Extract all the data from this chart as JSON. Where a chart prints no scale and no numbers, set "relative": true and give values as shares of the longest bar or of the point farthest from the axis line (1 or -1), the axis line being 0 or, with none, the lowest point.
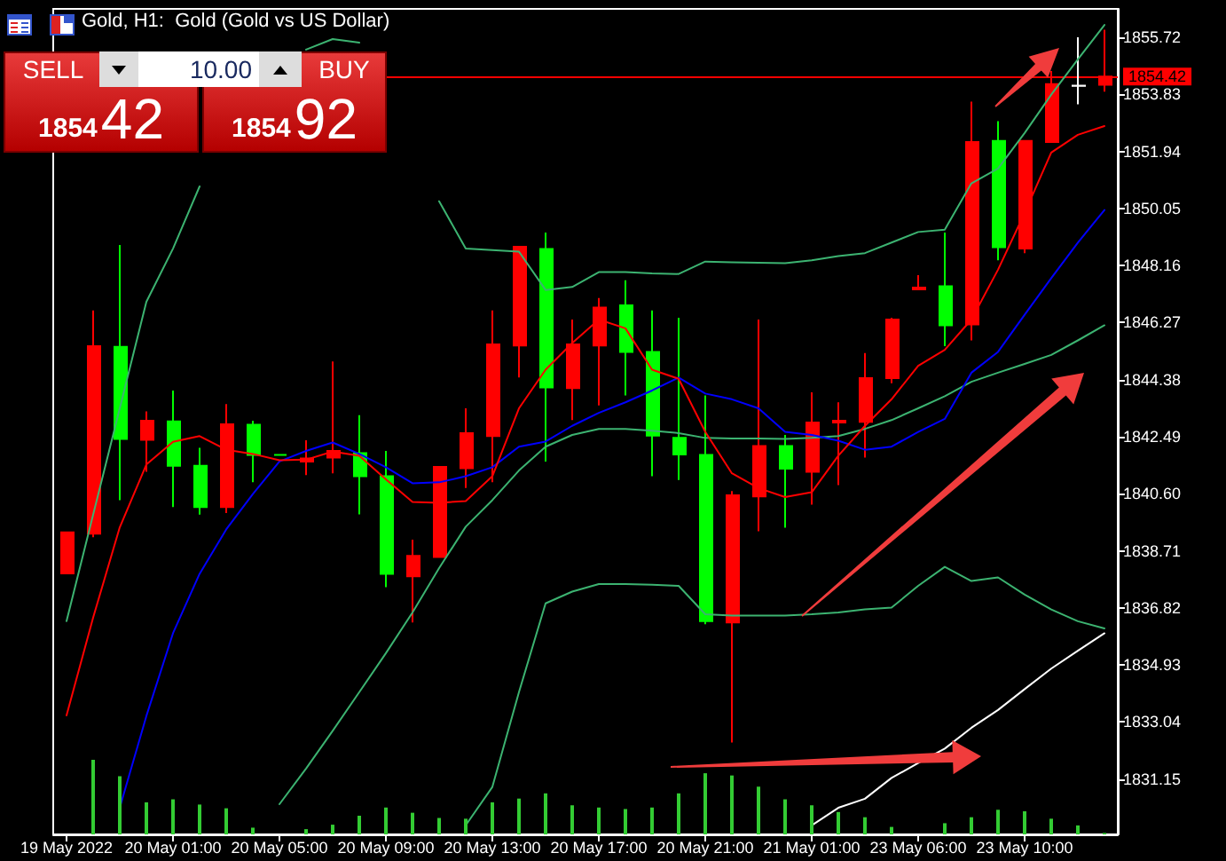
{
  "chart_data": [
    {
      "type": "candlestick",
      "title": "Gold, H1:  Gold (Gold vs US Dollar)",
      "annotations": [
        "SELL",
        "10.00",
        "BUY",
        "1854",
        "42",
        "1854",
        "92"
      ],
      "categories": [
        "19 May 2022",
        null,
        null,
        null,
        "20 May 01:00",
        null,
        null,
        null,
        "20 May 05:00",
        null,
        null,
        null,
        "20 May 09:00",
        null,
        null,
        null,
        "20 May 13:00",
        null,
        null,
        null,
        "20 May 17:00",
        null,
        null,
        null,
        "20 May 21:00",
        null,
        null,
        null,
        "21 May 01:00",
        null,
        null,
        null,
        "23 May 06:00",
        null,
        null,
        null,
        "23 May 10:00",
        null,
        null,
        null
      ],
      "ohlc": [
        [
          1837.96,
          1839.32,
          1837.96,
          1839.32
        ],
        [
          1839.28,
          1846.67,
          1839.16,
          1845.49
        ],
        [
          1845.47,
          1848.84,
          1840.39,
          1842.42
        ],
        [
          1842.39,
          1843.33,
          1841.33,
          1843.02
        ],
        [
          1843.0,
          1844.02,
          1840.16,
          1841.53
        ],
        [
          1841.53,
          1842.12,
          1839.91,
          1840.16
        ],
        [
          1840.16,
          1843.57,
          1839.96,
          1842.9
        ],
        [
          1842.89,
          1843.02,
          1840.98,
          1841.89
        ],
        [
          1841.89,
          1841.92,
          1841.86,
          1841.89
        ],
        [
          1841.67,
          1842.37,
          1841.22,
          1841.77
        ],
        [
          1841.8,
          1844.98,
          1841.28,
          1842.02
        ],
        [
          1841.95,
          1843.2,
          1839.92,
          1841.18
        ],
        [
          1841.18,
          1842.02,
          1837.51,
          1837.95
        ],
        [
          1837.87,
          1839.08,
          1836.34,
          1838.54
        ],
        [
          1838.51,
          1841.49,
          1838.51,
          1841.49
        ],
        [
          1841.45,
          1843.43,
          1840.79,
          1842.61
        ],
        [
          1842.51,
          1846.67,
          1840.98,
          1845.55
        ],
        [
          1845.51,
          1848.78,
          1844.45,
          1848.78
        ],
        [
          1848.71,
          1849.25,
          1841.67,
          1844.12
        ],
        [
          1844.1,
          1846.37,
          1843.04,
          1845.55
        ],
        [
          1845.51,
          1847.08,
          1843.53,
          1846.77
        ],
        [
          1846.84,
          1847.67,
          1843.86,
          1845.3
        ],
        [
          1845.3,
          1846.67,
          1841.18,
          1842.53
        ],
        [
          1842.45,
          1846.43,
          1841.06,
          1841.9
        ],
        [
          1841.89,
          1843.86,
          1836.28,
          1836.38
        ],
        [
          1836.34,
          1840.69,
          1832.36,
          1840.55
        ],
        [
          1840.51,
          1846.37,
          1839.36,
          1842.18
        ],
        [
          1842.18,
          1842.55,
          1839.48,
          1841.43
        ],
        [
          1841.33,
          1843.96,
          1840.24,
          1842.96
        ],
        [
          1842.96,
          1843.63,
          1840.89,
          1843.02
        ],
        [
          1842.98,
          1845.26,
          1841.8,
          1844.43
        ],
        [
          1844.43,
          1846.43,
          1844.26,
          1846.37
        ],
        [
          1847.37,
          1847.84,
          1847.37,
          1847.43
        ],
        [
          1847.47,
          1849.25,
          1845.49,
          1846.18
        ],
        [
          1846.21,
          1853.59,
          1845.68,
          1852.25
        ],
        [
          1852.29,
          1852.94,
          1848.33,
          1848.77
        ],
        [
          1848.72,
          1852.29,
          1848.57,
          1852.29
        ],
        [
          1852.25,
          1854.6,
          1852.25,
          1854.17
        ],
        [
          1854.11,
          1855.72,
          1853.5,
          1854.12
        ],
        [
          1854.15,
          1855.97,
          1853.92,
          1854.42
        ]
      ],
      "colors": [
        "#ff0000",
        "#ff0000",
        "#00ff00",
        "#ff0000",
        "#00ff00",
        "#00ff00",
        "#ff0000",
        "#00ff00",
        "#00ff00",
        "#ff0000",
        "#ff0000",
        "#00ff00",
        "#00ff00",
        "#ff0000",
        "#ff0000",
        "#ff0000",
        "#ff0000",
        "#ff0000",
        "#00ff00",
        "#ff0000",
        "#ff0000",
        "#00ff00",
        "#00ff00",
        "#00ff00",
        "#00ff00",
        "#ff0000",
        "#ff0000",
        "#00ff00",
        "#ff0000",
        "#ff0000",
        "#ff0000",
        "#ff0000",
        "#ff0000",
        "#00ff00",
        "#ff0000",
        "#00ff00",
        "#ff0000",
        "#ff0000",
        "#ffffff",
        "#ff0000"
      ],
      "series": [
        {
          "type": "line",
          "color": "#3cb371",
          "values": [
            1836.38,
            1839.91,
            1843.43,
            1846.96,
            1848.72,
            1850.78,
            null,
            null,
            null,
            1855.31,
            1855.66,
            1855.54,
            null,
            null,
            1850.29,
            1848.72,
            1848.67,
            1848.62,
            1847.35,
            1847.45,
            1847.94,
            1847.94,
            1847.9,
            1847.88,
            1848.29,
            1848.27,
            1848.25,
            1848.24,
            1848.33,
            1848.47,
            1848.57,
            1848.92,
            1849.27,
            1849.35,
            1850.88,
            1851.37,
            1852.55,
            1853.82,
            1854.99,
            1856.13
          ]
        },
        {
          "type": "line",
          "color": "#3cb371",
          "values": [
            null,
            null,
            null,
            null,
            null,
            null,
            null,
            null,
            1830.32,
            1831.5,
            1832.75,
            1834.03,
            1835.32,
            1836.67,
            1838.14,
            1839.51,
            1840.39,
            1841.37,
            1842.16,
            1842.55,
            1842.75,
            1842.75,
            1842.69,
            1842.61,
            1842.45,
            1842.43,
            1842.43,
            1842.42,
            1842.45,
            1842.51,
            1842.75,
            1843.04,
            1843.43,
            1843.83,
            1844.31,
            1844.61,
            1844.9,
            1845.2,
            1845.68,
            1846.18
          ]
        },
        {
          "type": "line",
          "color": "#3cb371",
          "values": [
            null,
            null,
            null,
            null,
            null,
            null,
            null,
            null,
            null,
            null,
            null,
            null,
            null,
            null,
            null,
            1829.62,
            1830.89,
            1834.03,
            1836.97,
            1837.36,
            1837.61,
            1837.61,
            1837.59,
            1837.55,
            1836.61,
            1836.57,
            1836.57,
            1836.57,
            1836.61,
            1836.67,
            1836.77,
            1836.83,
            1837.55,
            1838.18,
            1837.71,
            1837.83,
            1837.26,
            1836.77,
            1836.38,
            1836.14
          ]
        },
        {
          "type": "line",
          "color": "#ffffff",
          "values": [
            null,
            null,
            null,
            null,
            null,
            null,
            null,
            null,
            null,
            null,
            null,
            null,
            null,
            null,
            null,
            null,
            null,
            null,
            null,
            null,
            null,
            null,
            null,
            null,
            null,
            null,
            null,
            null,
            1829.62,
            1830.2,
            1830.5,
            1831.19,
            1831.68,
            1832.16,
            1832.85,
            1833.44,
            1834.13,
            1834.81,
            1835.4,
            1835.98
          ]
        },
        {
          "type": "line",
          "color": "#0000ff",
          "values": [
            null,
            null,
            1830.2,
            1833.24,
            1835.98,
            1837.95,
            1839.42,
            1840.59,
            1841.67,
            1842.02,
            1842.3,
            1841.92,
            1841.48,
            1840.95,
            1840.98,
            1841.18,
            1841.48,
            1842.16,
            1842.33,
            1842.85,
            1843.28,
            1843.63,
            1844.02,
            1844.45,
            1843.92,
            1843.73,
            1843.43,
            1842.65,
            1842.55,
            1842.36,
            1842.06,
            1842.16,
            1842.65,
            1843.08,
            1844.61,
            1845.3,
            1846.53,
            1847.74,
            1848.92,
            1850.0
          ]
        },
        {
          "type": "line",
          "color": "#ff0000",
          "values": [
            1833.26,
            1836.5,
            1839.49,
            1841.57,
            1842.32,
            1842.51,
            1842.06,
            1841.92,
            1841.71,
            1841.73,
            1842.0,
            1841.86,
            1841.08,
            1840.33,
            1840.3,
            1840.36,
            1841.18,
            1843.43,
            1844.71,
            1845.59,
            1846.37,
            1846.08,
            1844.71,
            1844.41,
            1842.65,
            1841.28,
            1840.79,
            1840.49,
            1840.65,
            1841.86,
            1842.85,
            1843.73,
            1844.84,
            1845.37,
            1846.37,
            1848.02,
            1849.9,
            1851.9,
            1852.49,
            1852.78
          ]
        }
      ],
      "ylim": [
        1829.32,
        1856.66
      ],
      "yticks": [
        1831.15,
        1833.04,
        1834.93,
        1836.82,
        1838.71,
        {
          "value": 1840.6,
          "label": "1840.60"
        },
        1842.49,
        1844.38,
        1846.27,
        1848.16,
        1850.05,
        1851.94,
        1853.83,
        1855.72
      ],
      "ref_lines": [
        {
          "axis": "y",
          "value": 1854.42,
          "label": "1854.42",
          "color": "#ff0000"
        }
      ]
    },
    {
      "type": "bar",
      "relative": true,
      "tick_labels": false,
      "color": "#33cc33",
      "categories": [
        null,
        null,
        null,
        null,
        null,
        null,
        null,
        null,
        null,
        null,
        null,
        null,
        null,
        null,
        null,
        null,
        null,
        null,
        null,
        null,
        null,
        null,
        null,
        null,
        null,
        null,
        null,
        null,
        null,
        null,
        null,
        null,
        null,
        null,
        null,
        null,
        null,
        null,
        null,
        null
      ],
      "values": [
        null,
        1,
        0.78,
        0.43,
        0.47,
        0.4,
        0.35,
        0.09,
        null,
        0.07,
        0.13,
        0.25,
        0.36,
        0.29,
        0.22,
        0.21,
        0.43,
        0.48,
        0.55,
        0.39,
        0.36,
        0.34,
        0.36,
        0.55,
        0.82,
        0.79,
        0.64,
        0.47,
        0.39,
        0.3,
        0.23,
        0.1,
        null,
        0.15,
        0.23,
        0.33,
        0.31,
        0.21,
        0.12,
        0.02
      ]
    }
  ]
}
